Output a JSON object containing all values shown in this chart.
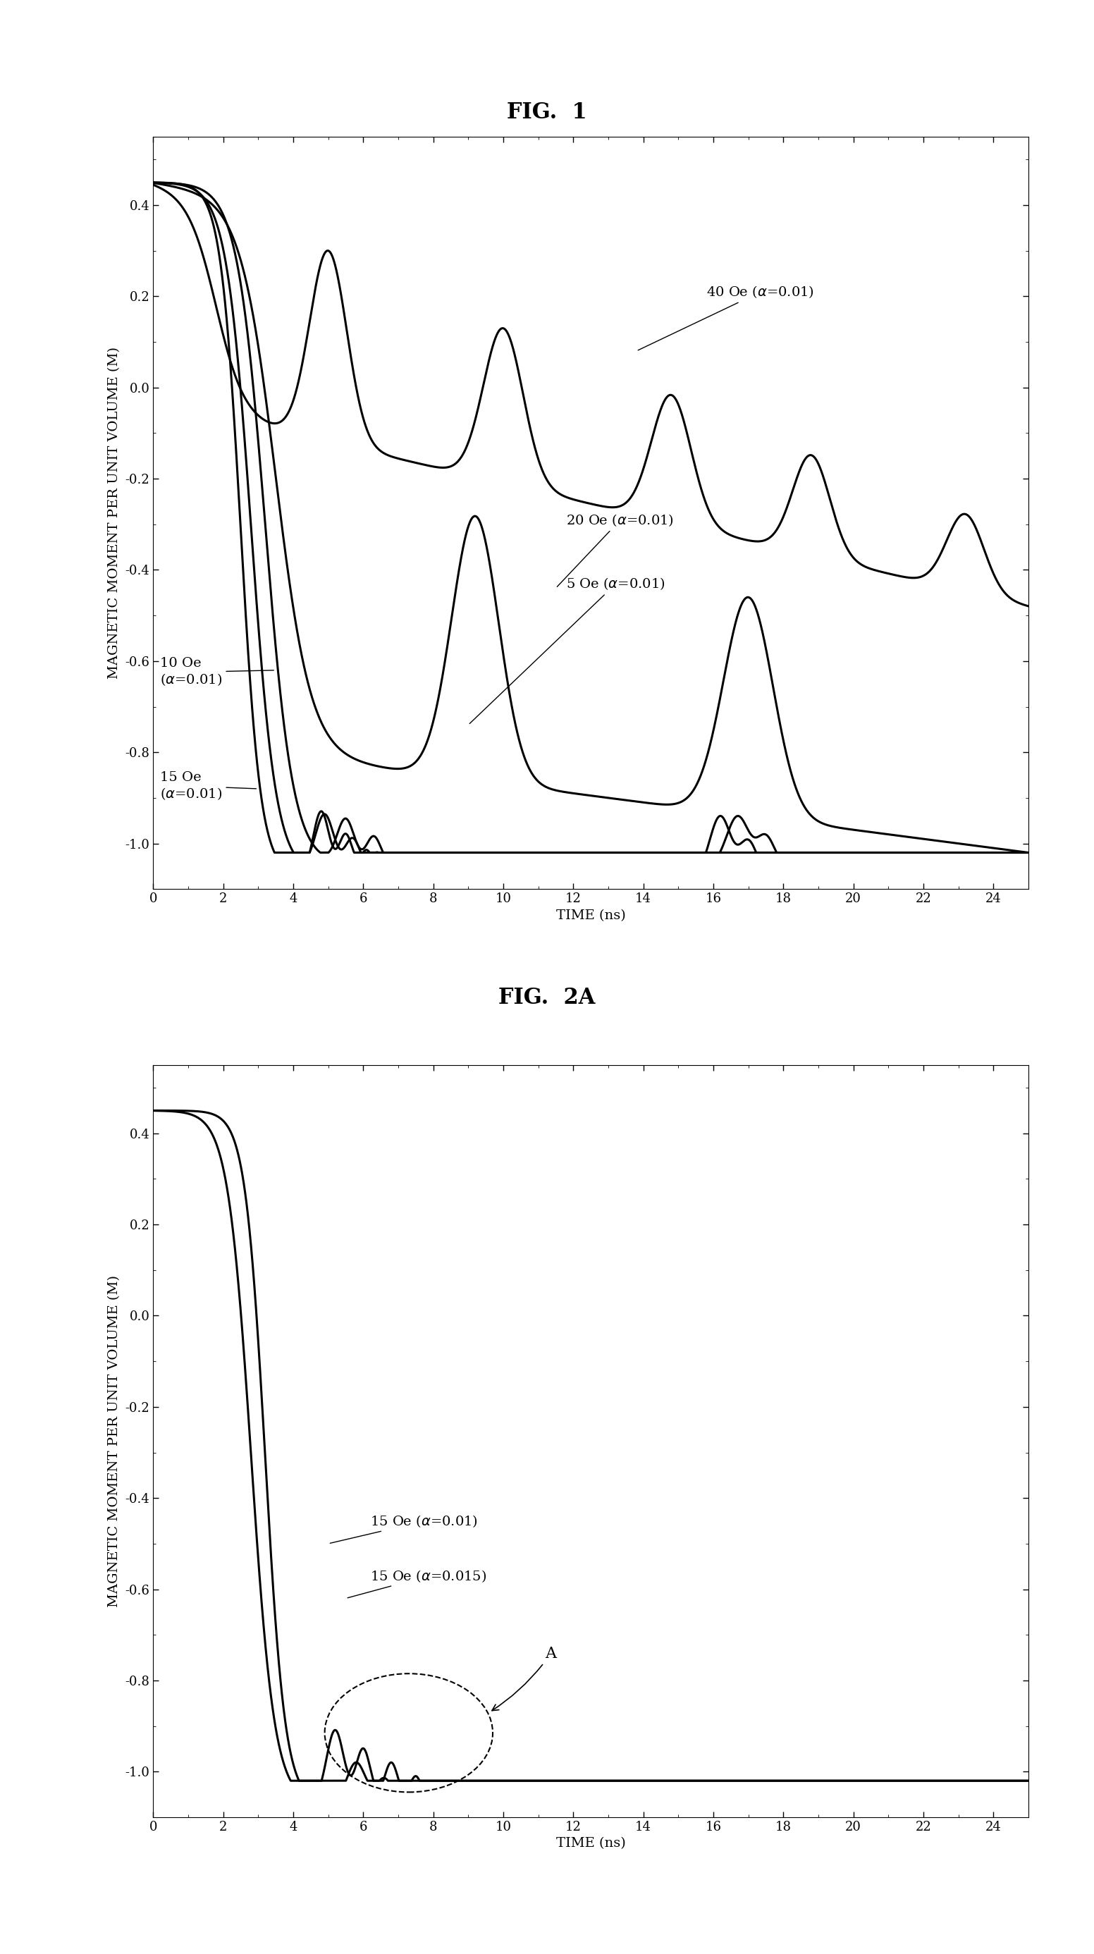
{
  "fig1_title": "FIG.  1",
  "fig2_title": "FIG.  2A",
  "xlabel": "TIME (ns)",
  "ylabel": "MAGNETIC MOMENT PER UNIT VOLUME (M)",
  "xlim": [
    0,
    25
  ],
  "ylim1": [
    -1.1,
    0.55
  ],
  "ylim2": [
    -1.1,
    0.55
  ],
  "xticks": [
    0,
    2,
    4,
    6,
    8,
    10,
    12,
    14,
    16,
    18,
    20,
    22,
    24
  ],
  "yticks": [
    -1.0,
    -0.8,
    -0.6,
    -0.4,
    -0.2,
    0.0,
    0.2,
    0.4
  ],
  "line_color": "#000000",
  "bg_color": "#ffffff",
  "title_fontsize": 22,
  "label_fontsize": 14,
  "tick_fontsize": 13,
  "annotation_fontsize": 14,
  "linewidth": 2.2
}
